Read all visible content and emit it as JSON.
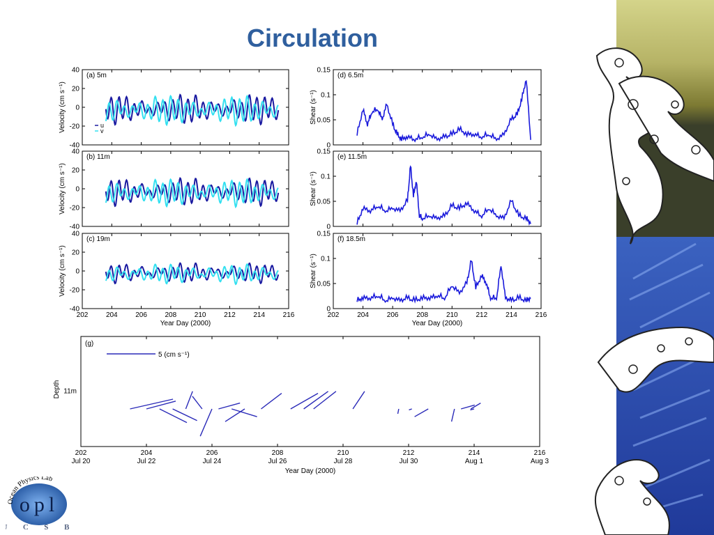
{
  "slide": {
    "title": "Circulation"
  },
  "colors": {
    "u": "#1a1aa0",
    "v": "#33e0f0",
    "shear": "#1a1adb",
    "stick": "#2a2ab8",
    "title": "#2f5f9e"
  },
  "logo": {
    "arc_text": "Ocean Physics Lab",
    "main_text": "opl",
    "bottom_text": "U C S B"
  },
  "chart_data": [
    {
      "type": "line",
      "panel": "(a) 5m",
      "xlim": [
        202,
        216
      ],
      "ylim": [
        -40,
        40
      ],
      "xticks": [
        "202",
        "204",
        "206",
        "208",
        "210",
        "212",
        "214",
        "216"
      ],
      "yticks": [
        "40",
        "20",
        "0",
        "-20",
        "-40"
      ],
      "ylabel": "Velocity (cm s⁻¹)",
      "xlabel": "",
      "legend": [
        "u",
        "v"
      ],
      "series": [
        {
          "name": "u",
          "x_range": [
            203.6,
            215.3
          ],
          "period": 0.52,
          "amplitude": 13,
          "mean": -2
        },
        {
          "name": "v",
          "x_range": [
            203.6,
            215.3
          ],
          "period": 0.52,
          "amplitude": 13,
          "mean": -3
        }
      ]
    },
    {
      "type": "line",
      "panel": "(b) 11m",
      "xlim": [
        202,
        216
      ],
      "ylim": [
        -40,
        40
      ],
      "xticks": [
        "202",
        "204",
        "206",
        "208",
        "210",
        "212",
        "214",
        "216"
      ],
      "yticks": [
        "40",
        "20",
        "0",
        "-20",
        "-40"
      ],
      "ylabel": "Velocity (cm s⁻¹)",
      "xlabel": "",
      "series": [
        {
          "name": "u",
          "x_range": [
            203.6,
            215.3
          ],
          "period": 0.52,
          "amplitude": 12,
          "mean": -3
        },
        {
          "name": "v",
          "x_range": [
            203.6,
            215.3
          ],
          "period": 0.52,
          "amplitude": 12,
          "mean": -4
        }
      ]
    },
    {
      "type": "line",
      "panel": "(c) 19m",
      "xlim": [
        202,
        216
      ],
      "ylim": [
        -40,
        40
      ],
      "xticks": [
        "202",
        "204",
        "206",
        "208",
        "210",
        "212",
        "214",
        "216"
      ],
      "yticks": [
        "40",
        "20",
        "0",
        "-20",
        "-40"
      ],
      "ylabel": "Velocity (cm s⁻¹)",
      "xlabel": "Year Day (2000)",
      "series": [
        {
          "name": "u",
          "x_range": [
            203.6,
            215.3
          ],
          "period": 0.52,
          "amplitude": 8,
          "mean": -2
        },
        {
          "name": "v",
          "x_range": [
            203.6,
            215.3
          ],
          "period": 0.52,
          "amplitude": 8,
          "mean": -3
        }
      ]
    },
    {
      "type": "line",
      "panel": "(d) 6.5m",
      "xlim": [
        202,
        216
      ],
      "ylim": [
        0,
        0.15
      ],
      "xticks": [
        "202",
        "204",
        "206",
        "208",
        "210",
        "212",
        "214",
        "216"
      ],
      "yticks": [
        "0.15",
        "0.1",
        "0.05",
        "0"
      ],
      "ylabel": "Shear (s⁻¹)",
      "xlabel": "",
      "series": [
        {
          "name": "shear",
          "x": [
            203.6,
            204,
            204.3,
            204.6,
            205,
            205.3,
            205.6,
            206,
            206.3,
            206.6,
            207,
            207.5,
            208,
            208.5,
            209,
            209.5,
            210,
            210.5,
            211,
            211.5,
            212,
            212.5,
            213,
            213.5,
            214,
            214.4,
            214.7,
            215,
            215.3
          ],
          "y": [
            0.02,
            0.07,
            0.04,
            0.065,
            0.07,
            0.05,
            0.08,
            0.04,
            0.02,
            0.01,
            0.015,
            0.01,
            0.015,
            0.02,
            0.01,
            0.015,
            0.02,
            0.03,
            0.02,
            0.02,
            0.015,
            0.02,
            0.01,
            0.02,
            0.05,
            0.06,
            0.09,
            0.13,
            0.01
          ]
        }
      ]
    },
    {
      "type": "line",
      "panel": "(e) 11.5m",
      "xlim": [
        202,
        216
      ],
      "ylim": [
        0,
        0.15
      ],
      "xticks": [
        "202",
        "204",
        "206",
        "208",
        "210",
        "212",
        "214",
        "216"
      ],
      "yticks": [
        "0.15",
        "0.1",
        "0.05",
        "0"
      ],
      "ylabel": "Shear (s⁻¹)",
      "xlabel": "",
      "series": [
        {
          "name": "shear",
          "x": [
            203.6,
            204,
            204.5,
            205,
            205.5,
            206,
            206.5,
            207,
            207.2,
            207.4,
            207.6,
            207.8,
            208,
            208.5,
            209,
            209.5,
            210,
            210.5,
            211,
            211.5,
            212,
            212.5,
            213,
            213.5,
            214,
            214.5,
            215,
            215.3
          ],
          "y": [
            0.005,
            0.035,
            0.03,
            0.04,
            0.03,
            0.035,
            0.03,
            0.05,
            0.12,
            0.06,
            0.09,
            0.02,
            0.015,
            0.02,
            0.015,
            0.02,
            0.04,
            0.035,
            0.045,
            0.03,
            0.02,
            0.035,
            0.02,
            0.015,
            0.05,
            0.02,
            0.015,
            0.005
          ]
        }
      ]
    },
    {
      "type": "line",
      "panel": "(f) 18.5m",
      "xlim": [
        202,
        216
      ],
      "ylim": [
        0,
        0.15
      ],
      "xticks": [
        "202",
        "204",
        "206",
        "208",
        "210",
        "212",
        "214",
        "216"
      ],
      "yticks": [
        "0.15",
        "0.1",
        "0.05",
        "0"
      ],
      "ylabel": "Shear (s⁻¹)",
      "xlabel": "Year Day (2000)",
      "series": [
        {
          "name": "shear",
          "x": [
            203.6,
            204,
            204.5,
            205,
            205.5,
            206,
            206.5,
            207,
            207.5,
            208,
            208.5,
            209,
            209.5,
            210,
            210.5,
            211,
            211.3,
            211.6,
            212,
            212.3,
            212.6,
            213,
            213.3,
            213.6,
            214,
            214.5,
            215,
            215.3
          ],
          "y": [
            0.015,
            0.02,
            0.02,
            0.025,
            0.015,
            0.02,
            0.015,
            0.02,
            0.015,
            0.02,
            0.02,
            0.025,
            0.02,
            0.045,
            0.03,
            0.05,
            0.095,
            0.04,
            0.065,
            0.05,
            0.02,
            0.02,
            0.085,
            0.02,
            0.015,
            0.02,
            0.015,
            0.02
          ]
        }
      ]
    },
    {
      "type": "stick",
      "panel": "(g)",
      "xlim": [
        202,
        216
      ],
      "xticks": [
        "202",
        "204",
        "206",
        "208",
        "210",
        "212",
        "214",
        "216"
      ],
      "xtick_dates": [
        "Jul 20",
        "Jul 22",
        "Jul 24",
        "Jul 26",
        "Jul 28",
        "Jul 30",
        "Aug 1",
        "Aug 3"
      ],
      "ylabel": "Depth",
      "ytick": "11m",
      "xlabel": "Year Day (2000)",
      "scale_label": "5 (cm s⁻¹)",
      "sticks": [
        {
          "x0": 203.5,
          "dx": 4.4,
          "dy": 1.0
        },
        {
          "x0": 204.0,
          "dx": 3.0,
          "dy": 0.8
        },
        {
          "x0": 204.4,
          "dx": 2.8,
          "dy": -1.4
        },
        {
          "x0": 204.8,
          "dx": 2.5,
          "dy": -1.2
        },
        {
          "x0": 205.2,
          "dx": 0.7,
          "dy": 1.8
        },
        {
          "x0": 205.7,
          "dx": -1.0,
          "dy": 1.3
        },
        {
          "x0": 206.0,
          "dx": -1.2,
          "dy": -2.8
        },
        {
          "x0": 206.2,
          "dx": 2.2,
          "dy": 0.6
        },
        {
          "x0": 206.6,
          "dx": 2.6,
          "dy": -0.8
        },
        {
          "x0": 207.0,
          "dx": -2.0,
          "dy": -1.3
        },
        {
          "x0": 207.5,
          "dx": 2.1,
          "dy": 1.6
        },
        {
          "x0": 208.4,
          "dx": 2.8,
          "dy": 1.6
        },
        {
          "x0": 208.8,
          "dx": 2.5,
          "dy": 1.8
        },
        {
          "x0": 209.1,
          "dx": 2.3,
          "dy": 1.8
        },
        {
          "x0": 210.3,
          "dx": 1.2,
          "dy": 1.8
        },
        {
          "x0": 211.7,
          "dx": -0.1,
          "dy": -0.5
        },
        {
          "x0": 212.1,
          "dx": -0.3,
          "dy": -0.1
        },
        {
          "x0": 212.6,
          "dx": -1.4,
          "dy": -0.8
        },
        {
          "x0": 213.4,
          "dx": -0.3,
          "dy": -1.3
        },
        {
          "x0": 213.6,
          "dx": 1.4,
          "dy": 0.4
        },
        {
          "x0": 213.9,
          "dx": 1.0,
          "dy": 0.6
        },
        {
          "x0": 214.0,
          "dx": -0.4,
          "dy": -0.1
        }
      ]
    }
  ]
}
